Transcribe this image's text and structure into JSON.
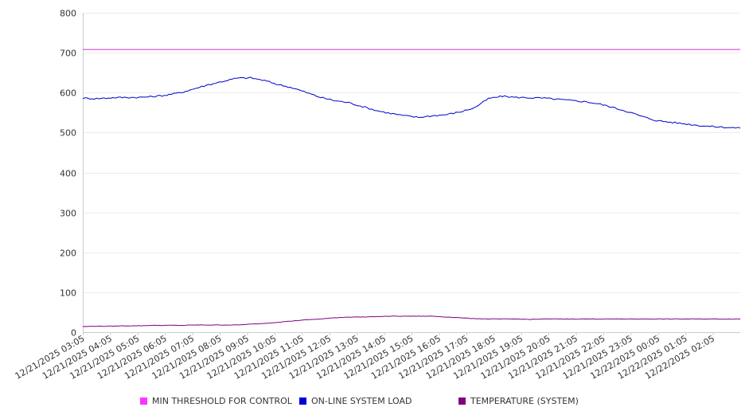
{
  "chart_data": {
    "type": "line",
    "title": "",
    "xlabel": "",
    "ylabel": "",
    "ylim": [
      0,
      800
    ],
    "y_ticks": [
      0,
      100,
      200,
      300,
      400,
      500,
      600,
      700,
      800
    ],
    "x_tick_labels": [
      "12/21/2025 03:05",
      "12/21/2025 04:05",
      "12/21/2025 05:05",
      "12/21/2025 06:05",
      "12/21/2025 07:05",
      "12/21/2025 08:05",
      "12/21/2025 09:05",
      "12/21/2025 10:05",
      "12/21/2025 11:05",
      "12/21/2025 12:05",
      "12/21/2025 13:05",
      "12/21/2025 14:05",
      "12/21/2025 15:05",
      "12/21/2025 16:05",
      "12/21/2025 17:05",
      "12/21/2025 18:05",
      "12/21/2025 19:05",
      "12/21/2025 20:05",
      "12/21/2025 21:05",
      "12/21/2025 22:05",
      "12/21/2025 23:05",
      "12/22/2025 00:05",
      "12/22/2025 01:05",
      "12/22/2025 02:05"
    ],
    "grid": "horizontal",
    "legend_position": "bottom",
    "x": [
      "12/21/2025 03:05",
      "12/21/2025 03:35",
      "12/21/2025 04:05",
      "12/21/2025 04:35",
      "12/21/2025 05:05",
      "12/21/2025 05:35",
      "12/21/2025 06:05",
      "12/21/2025 06:35",
      "12/21/2025 07:05",
      "12/21/2025 07:35",
      "12/21/2025 08:05",
      "12/21/2025 08:35",
      "12/21/2025 09:05",
      "12/21/2025 09:35",
      "12/21/2025 10:05",
      "12/21/2025 10:35",
      "12/21/2025 11:05",
      "12/21/2025 11:35",
      "12/21/2025 12:05",
      "12/21/2025 12:35",
      "12/21/2025 13:05",
      "12/21/2025 13:35",
      "12/21/2025 14:05",
      "12/21/2025 14:35",
      "12/21/2025 15:05",
      "12/21/2025 15:35",
      "12/21/2025 16:05",
      "12/21/2025 16:35",
      "12/21/2025 17:05",
      "12/21/2025 17:35",
      "12/21/2025 18:05",
      "12/21/2025 18:35",
      "12/21/2025 19:05",
      "12/21/2025 19:35",
      "12/21/2025 20:05",
      "12/21/2025 20:35",
      "12/21/2025 21:05",
      "12/21/2025 21:35",
      "12/21/2025 22:05",
      "12/21/2025 22:35",
      "12/21/2025 23:05",
      "12/21/2025 23:35",
      "12/22/2025 00:05",
      "12/22/2025 00:35",
      "12/22/2025 01:05",
      "12/22/2025 01:35",
      "12/22/2025 02:05",
      "12/22/2025 02:35"
    ],
    "series": [
      {
        "name": "MIN THRESHOLD FOR CONTROL",
        "color": "#cc33cc",
        "values": [
          708,
          708,
          708,
          708,
          708,
          708,
          708,
          708,
          708,
          708,
          708,
          708,
          708,
          708,
          708,
          708,
          708,
          708,
          708,
          708,
          708,
          708,
          708,
          708,
          708,
          708,
          708,
          708,
          708,
          708,
          708,
          708,
          708,
          708,
          708,
          708,
          708,
          708,
          708,
          708,
          708,
          708,
          708,
          708,
          708,
          708,
          708,
          708
        ]
      },
      {
        "name": "ON-LINE SYSTEM LOAD",
        "color": "#0000cc",
        "values": [
          586,
          585,
          587,
          588,
          588,
          590,
          594,
          600,
          610,
          620,
          628,
          636,
          637,
          630,
          620,
          612,
          600,
          588,
          580,
          575,
          565,
          555,
          548,
          542,
          538,
          542,
          545,
          552,
          562,
          585,
          591,
          588,
          587,
          586,
          583,
          580,
          577,
          571,
          562,
          552,
          540,
          530,
          526,
          522,
          518,
          515,
          513,
          511
        ]
      },
      {
        "name": "TEMPERATURE (SYSTEM)",
        "color": "#800080",
        "values": [
          14,
          15,
          15,
          16,
          16,
          17,
          17,
          17,
          18,
          18,
          18,
          18,
          20,
          22,
          25,
          28,
          31,
          33,
          36,
          38,
          38,
          39,
          40,
          40,
          40,
          40,
          38,
          36,
          34,
          33,
          33,
          33,
          32,
          33,
          33,
          33,
          33,
          33,
          33,
          33,
          33,
          33,
          33,
          33,
          33,
          33,
          33,
          33
        ]
      }
    ]
  }
}
